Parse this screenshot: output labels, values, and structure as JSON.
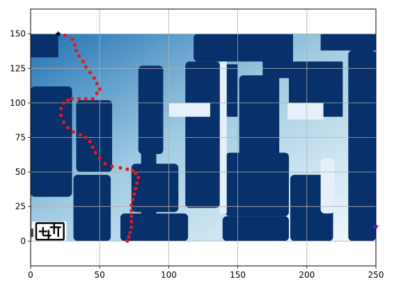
{
  "chart_data": {
    "type": "scatter",
    "title": "",
    "xlabel": "",
    "ylabel": "",
    "xlim": [
      0,
      250
    ],
    "ylim": [
      -18,
      168
    ],
    "x_ticks": [
      0,
      50,
      100,
      150,
      200,
      250
    ],
    "y_ticks": [
      0,
      25,
      50,
      75,
      100,
      125,
      150
    ],
    "grid": true,
    "legend": "none",
    "colors": {
      "wall": "#08306b",
      "free_light": "#f7fbff",
      "free_mid": "#9ecae1",
      "free_dark": "#2171b5",
      "path": "#e41a1c",
      "start": "#000000",
      "goal": "#b01dbb",
      "grid": "#b0b0b0"
    },
    "markers": {
      "start": {
        "x": 20,
        "y": 150,
        "symbol": "star"
      },
      "goal": {
        "x": 250,
        "y": 10,
        "symbol": "triangle"
      }
    },
    "series": [
      {
        "x": [
          25,
          30,
          32,
          33,
          35,
          38,
          40,
          43,
          46,
          48,
          50,
          48,
          45,
          40,
          35,
          30,
          27,
          24,
          22,
          22,
          24,
          27,
          31,
          36,
          40,
          43,
          45,
          47,
          50,
          54,
          59,
          65,
          70,
          74,
          76,
          78,
          77,
          76,
          75,
          74,
          73,
          73,
          73,
          73,
          73,
          72,
          71,
          70
        ],
        "y": [
          149,
          146,
          142,
          138,
          134,
          130,
          126,
          122,
          118,
          114,
          110,
          107,
          103,
          103,
          103,
          103,
          102,
          100,
          96,
          91,
          86,
          82,
          79,
          77,
          75,
          72,
          68,
          64,
          60,
          56,
          54,
          53,
          52,
          51,
          49,
          46,
          42,
          38,
          34,
          30,
          26,
          22,
          18,
          14,
          10,
          6,
          3,
          0
        ]
      }
    ]
  }
}
